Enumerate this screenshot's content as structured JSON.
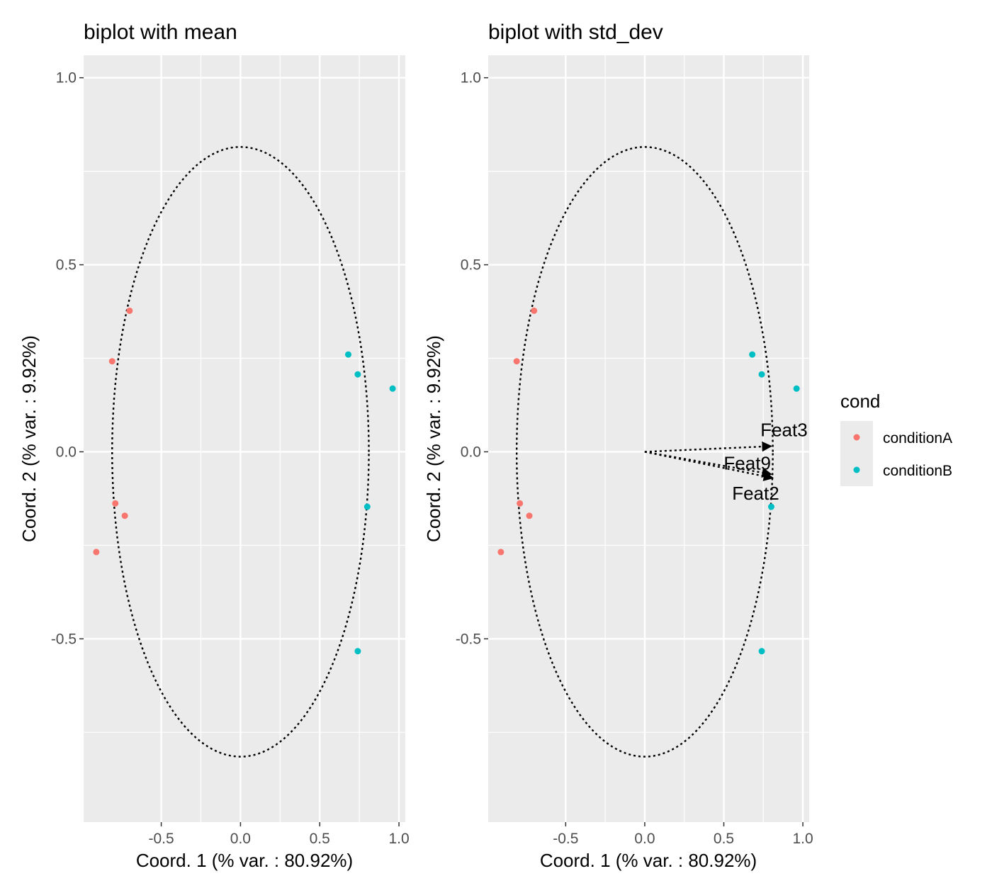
{
  "colors": {
    "panel_bg": "#EBEBEB",
    "grid": "#FFFFFF",
    "tick_text": "#4D4D4D",
    "condition_a": "#F8766D",
    "condition_b": "#00BFC4",
    "ellipse": "#000000",
    "arrow": "#000000"
  },
  "legend": {
    "title": "cond",
    "items": [
      {
        "label": "conditionA",
        "color": "#F8766D"
      },
      {
        "label": "conditionB",
        "color": "#00BFC4"
      }
    ]
  },
  "chart_data": [
    {
      "type": "scatter",
      "title": "biplot with mean",
      "xlabel": "Coord. 1 (% var. : 80.92%)",
      "ylabel": "Coord. 2 (% var. : 9.92%)",
      "xlim": [
        -0.99,
        1.04
      ],
      "ylim": [
        -0.99,
        1.06
      ],
      "xticks": [
        -0.5,
        0.0,
        0.5,
        1.0
      ],
      "xtick_labels": [
        "-0.5",
        "0.0",
        "0.5",
        "1.0"
      ],
      "yticks": [
        -0.5,
        0.0,
        0.5,
        1.0
      ],
      "ytick_labels": [
        "-0.5",
        "0.0",
        "0.5",
        "1.0"
      ],
      "grid": true,
      "ellipse": {
        "center": [
          0,
          0
        ],
        "rx": 0.81,
        "ry": 0.815,
        "style": "dotted"
      },
      "series": [
        {
          "name": "conditionA",
          "x": [
            -0.7,
            -0.81,
            -0.79,
            -0.73,
            -0.91
          ],
          "y": [
            0.377,
            0.242,
            -0.138,
            -0.171,
            -0.268
          ]
        },
        {
          "name": "conditionB",
          "x": [
            0.68,
            0.74,
            0.96,
            0.8,
            0.74
          ],
          "y": [
            0.26,
            0.207,
            0.169,
            -0.147,
            -0.533
          ]
        }
      ],
      "arrows": []
    },
    {
      "type": "scatter",
      "title": "biplot with std_dev",
      "xlabel": "Coord. 1 (% var. : 80.92%)",
      "ylabel": "Coord. 2 (% var. : 9.92%)",
      "xlim": [
        -0.99,
        1.04
      ],
      "ylim": [
        -0.99,
        1.06
      ],
      "xticks": [
        -0.5,
        0.0,
        0.5,
        1.0
      ],
      "xtick_labels": [
        "-0.5",
        "0.0",
        "0.5",
        "1.0"
      ],
      "yticks": [
        -0.5,
        0.0,
        0.5,
        1.0
      ],
      "ytick_labels": [
        "-0.5",
        "0.0",
        "0.5",
        "1.0"
      ],
      "grid": true,
      "ellipse": {
        "center": [
          0,
          0
        ],
        "rx": 0.81,
        "ry": 0.815,
        "style": "dotted"
      },
      "series": [
        {
          "name": "conditionA",
          "x": [
            -0.7,
            -0.81,
            -0.79,
            -0.73,
            -0.91
          ],
          "y": [
            0.377,
            0.242,
            -0.138,
            -0.171,
            -0.268
          ]
        },
        {
          "name": "conditionB",
          "x": [
            0.68,
            0.74,
            0.96,
            0.8,
            0.74
          ],
          "y": [
            0.26,
            0.207,
            0.169,
            -0.147,
            -0.533
          ]
        }
      ],
      "arrows": [
        {
          "label": "Feat3",
          "x": 0.8,
          "y": 0.015
        },
        {
          "label": "Feat9",
          "x": 0.81,
          "y": -0.07
        },
        {
          "label": "Feat2",
          "x": 0.8,
          "y": -0.06
        }
      ]
    }
  ]
}
